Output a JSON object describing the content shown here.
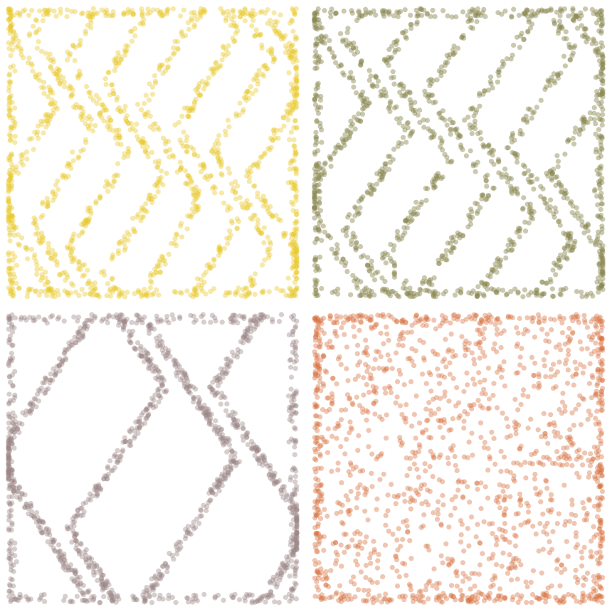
{
  "chart_data": [
    {
      "type": "scatter",
      "title": "",
      "xlabel": "",
      "ylabel": "",
      "grid": false,
      "axes_visible": false,
      "color": "#e8c82a",
      "opacity": 0.4,
      "series": [
        {
          "pattern": "zigzag-chains",
          "x_range": [
            0,
            1
          ],
          "y_range": [
            0,
            1
          ],
          "points_approx": 1600,
          "chains": 8,
          "chain_peaks_x": [
            0.02,
            0.17,
            0.3,
            0.43,
            0.57,
            0.7,
            0.83,
            0.97
          ],
          "edge_clusters_x": [
            0.0,
            1.0
          ],
          "dense_ends": [
            "top",
            "bottom"
          ]
        }
      ]
    },
    {
      "type": "scatter",
      "title": "",
      "xlabel": "",
      "ylabel": "",
      "grid": false,
      "axes_visible": false,
      "color": "#8a8850",
      "opacity": 0.45,
      "series": [
        {
          "pattern": "zigzag-chains",
          "x_range": [
            0,
            1
          ],
          "y_range": [
            0,
            1
          ],
          "points_approx": 1500,
          "chains": 7,
          "edge_clusters_x": [
            0.0,
            1.0
          ],
          "dense_ends": [
            "top",
            "bottom"
          ]
        }
      ]
    },
    {
      "type": "scatter",
      "title": "",
      "xlabel": "",
      "ylabel": "",
      "grid": false,
      "axes_visible": false,
      "color": "#9c8585",
      "opacity": 0.4,
      "series": [
        {
          "pattern": "zigzag-chains",
          "x_range": [
            0,
            1
          ],
          "y_range": [
            0,
            1
          ],
          "points_approx": 1500,
          "chains": 4,
          "edge_clusters_x": [
            0.0,
            1.0
          ],
          "dense_ends": [
            "top",
            "bottom"
          ]
        }
      ]
    },
    {
      "type": "scatter",
      "title": "",
      "xlabel": "",
      "ylabel": "",
      "grid": false,
      "axes_visible": false,
      "color": "#d8703f",
      "opacity": 0.4,
      "series": [
        {
          "pattern": "near-uniform",
          "x_range": [
            0,
            1
          ],
          "y_range": [
            0,
            1
          ],
          "points_approx": 1600,
          "edge_clusters_x": [
            0.0,
            1.0
          ],
          "dense_ends": [
            "top",
            "bottom"
          ]
        }
      ]
    }
  ]
}
